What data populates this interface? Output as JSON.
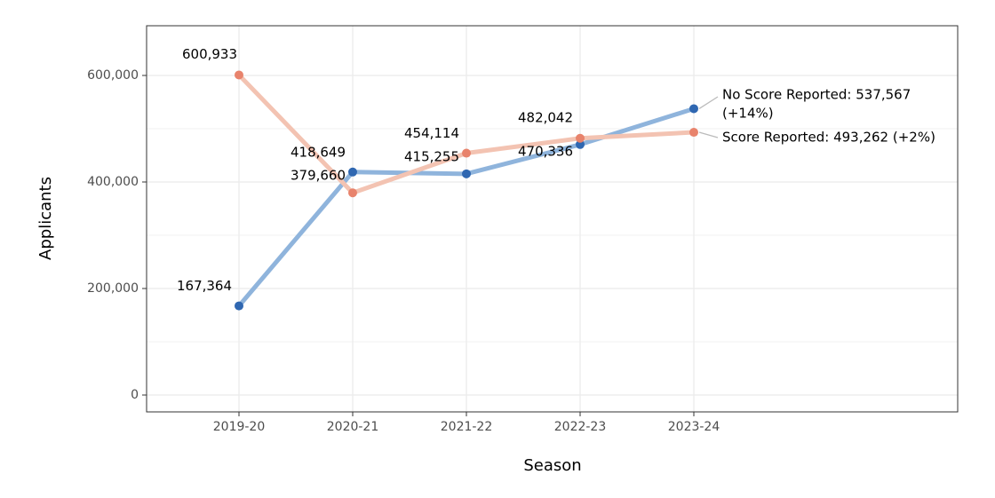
{
  "chart_data": {
    "type": "line",
    "x_label": "Season",
    "y_label": "Applicants",
    "categories": [
      "2019-20",
      "2020-21",
      "2021-22",
      "2022-23",
      "2023-24"
    ],
    "series": [
      {
        "label": [
          "No Score Reported: 537,567",
          "(+14%)"
        ],
        "line_color": "#8fb4dc",
        "color": "#2f67b1",
        "values": [
          167364,
          418649,
          415255,
          470336,
          537567
        ],
        "value_labels": [
          "167,364",
          "418,649",
          "415,255",
          "470,336"
        ]
      },
      {
        "label": [
          "Score Reported: 493,262 (+2%)"
        ],
        "line_color": "#f3c3b2",
        "color": "#e8836c",
        "values": [
          600933,
          379660,
          454114,
          482042,
          493262
        ],
        "value_labels": [
          "600,933",
          "379,660",
          "454,114",
          "482,042"
        ]
      }
    ],
    "ylim": [
      -31667,
      693333
    ],
    "yticks": [
      0,
      {
        "value": 200000,
        "label": "200,000"
      },
      {
        "value": 400000,
        "label": "400,000"
      },
      {
        "value": 600000,
        "label": "600,000"
      }
    ],
    "y_minor_grid": [
      100000,
      300000,
      500000
    ],
    "grid": true
  }
}
